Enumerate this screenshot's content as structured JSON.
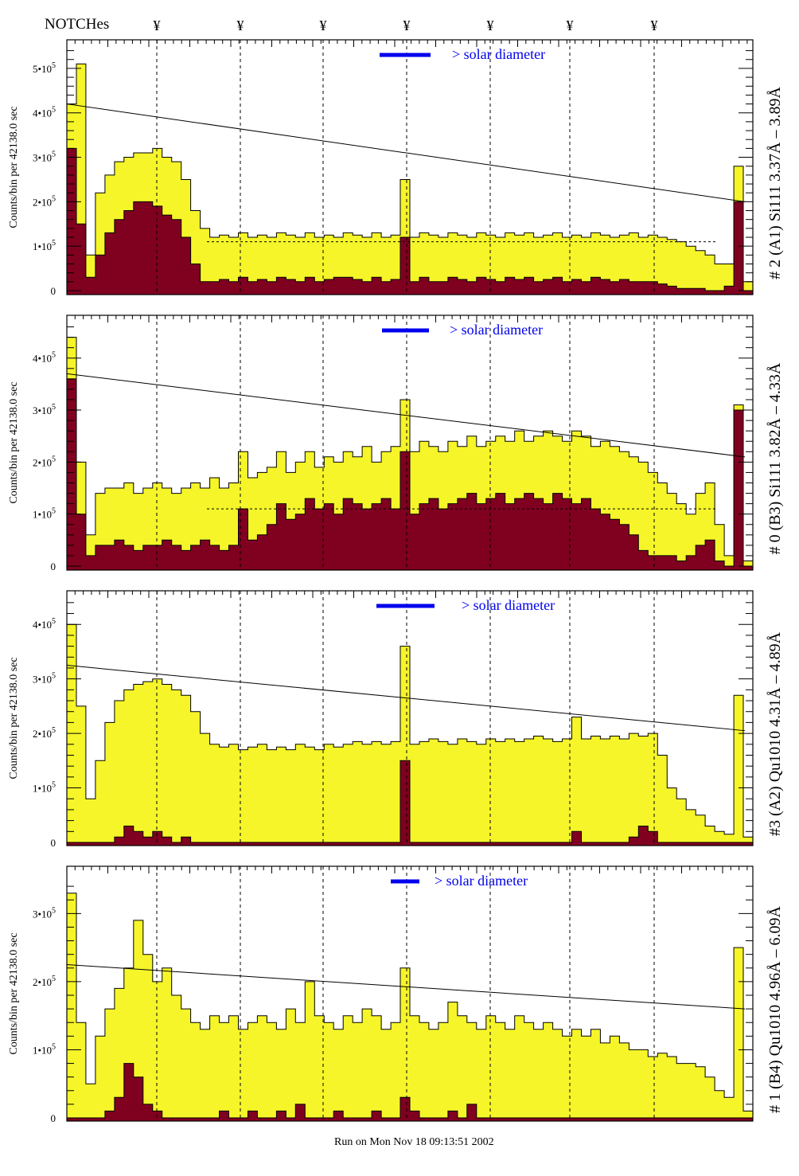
{
  "header": {
    "notches_label": "NOTCHes",
    "notch_symbol": "¥"
  },
  "footer": {
    "run_text": "Run on Mon Nov 18 09:13:51 2002"
  },
  "colors": {
    "total": "#f5f52a",
    "selected": "#800020",
    "legend": "#0000ee"
  },
  "chart_data": [
    {
      "type": "bar",
      "title": "# 2 (A1) Si111  3.37Å – 3.89Å",
      "ylabel": "Counts/bin per  42138.0 sec",
      "legend": "> solar diameter",
      "yticks": [
        "0",
        "1•10^5",
        "2•10^5",
        "3•10^5",
        "4•10^5",
        "5•10^5"
      ],
      "ylim": [
        0,
        5.5
      ],
      "yunit": 100000,
      "fit_line": [
        4.2,
        2.0
      ],
      "dashed_level": 1.1,
      "total": [
        4.2,
        5.1,
        0.8,
        2.2,
        2.6,
        2.9,
        3.0,
        3.1,
        3.1,
        3.2,
        3.0,
        2.9,
        2.5,
        1.8,
        1.4,
        1.2,
        1.25,
        1.2,
        1.3,
        1.2,
        1.25,
        1.2,
        1.3,
        1.25,
        1.2,
        1.3,
        1.2,
        1.25,
        1.2,
        1.3,
        1.25,
        1.2,
        1.3,
        1.2,
        1.25,
        2.5,
        1.2,
        1.3,
        1.25,
        1.2,
        1.3,
        1.25,
        1.2,
        1.3,
        1.25,
        1.2,
        1.3,
        1.25,
        1.3,
        1.2,
        1.25,
        1.3,
        1.2,
        1.25,
        1.2,
        1.3,
        1.25,
        1.2,
        1.25,
        1.3,
        1.2,
        1.25,
        1.2,
        1.15,
        1.1,
        1.0,
        0.9,
        0.8,
        0.6,
        0.6,
        2.8,
        0.2
      ],
      "selected": [
        3.2,
        1.5,
        0.3,
        0.8,
        1.3,
        1.6,
        1.8,
        2.0,
        2.0,
        1.9,
        1.7,
        1.6,
        1.2,
        0.6,
        0.2,
        0.2,
        0.25,
        0.2,
        0.3,
        0.2,
        0.25,
        0.2,
        0.3,
        0.25,
        0.2,
        0.3,
        0.2,
        0.25,
        0.3,
        0.3,
        0.25,
        0.2,
        0.3,
        0.2,
        0.25,
        1.2,
        0.2,
        0.3,
        0.2,
        0.2,
        0.3,
        0.25,
        0.2,
        0.3,
        0.25,
        0.2,
        0.3,
        0.25,
        0.3,
        0.2,
        0.25,
        0.3,
        0.2,
        0.25,
        0.2,
        0.3,
        0.25,
        0.2,
        0.25,
        0.2,
        0.2,
        0.2,
        0.15,
        0.1,
        0.05,
        0.05,
        0.05,
        0.0,
        0.0,
        0.1,
        2.0,
        0.0
      ]
    },
    {
      "type": "bar",
      "title": "# 0 (B3) Si111  3.82Å – 4.33Å",
      "ylabel": "Counts/bin per  42138.0 sec",
      "legend": "> solar diameter",
      "yticks": [
        "0",
        "1•10^5",
        "2•10^5",
        "3•10^5",
        "4•10^5"
      ],
      "ylim": [
        0,
        4.7
      ],
      "yunit": 100000,
      "fit_line": [
        3.7,
        2.1
      ],
      "dashed_level": 1.1,
      "total": [
        4.4,
        2.0,
        0.6,
        1.4,
        1.5,
        1.5,
        1.6,
        1.4,
        1.5,
        1.6,
        1.5,
        1.4,
        1.5,
        1.6,
        1.5,
        1.7,
        1.5,
        1.6,
        2.2,
        1.7,
        1.8,
        1.9,
        2.2,
        1.8,
        2.0,
        2.2,
        1.9,
        2.1,
        2.0,
        2.2,
        2.1,
        2.3,
        2.0,
        2.2,
        2.3,
        3.2,
        2.2,
        2.4,
        2.3,
        2.2,
        2.4,
        2.3,
        2.5,
        2.3,
        2.4,
        2.5,
        2.4,
        2.6,
        2.4,
        2.5,
        2.6,
        2.5,
        2.4,
        2.6,
        2.5,
        2.3,
        2.4,
        2.3,
        2.2,
        2.1,
        2.0,
        1.8,
        1.6,
        1.4,
        1.2,
        1.0,
        1.4,
        1.6,
        0.8,
        0.2,
        3.1,
        0.1
      ],
      "selected": [
        3.6,
        1.0,
        0.2,
        0.4,
        0.4,
        0.5,
        0.4,
        0.3,
        0.4,
        0.4,
        0.5,
        0.4,
        0.3,
        0.4,
        0.5,
        0.4,
        0.3,
        0.4,
        1.1,
        0.5,
        0.6,
        0.8,
        1.2,
        0.9,
        1.0,
        1.3,
        1.1,
        1.2,
        1.0,
        1.3,
        1.2,
        1.1,
        1.2,
        1.3,
        1.1,
        2.2,
        1.0,
        1.2,
        1.3,
        1.1,
        1.2,
        1.3,
        1.4,
        1.2,
        1.3,
        1.4,
        1.2,
        1.3,
        1.4,
        1.3,
        1.2,
        1.4,
        1.3,
        1.2,
        1.3,
        1.1,
        1.0,
        0.9,
        0.8,
        0.6,
        0.3,
        0.2,
        0.2,
        0.2,
        0.1,
        0.2,
        0.4,
        0.5,
        0.1,
        0.0,
        3.0,
        0.0
      ]
    },
    {
      "type": "bar",
      "title": "#3 (A2) Qu1010  4.31Å – 4.89Å",
      "ylabel": "Counts/bin per  42138.0 sec",
      "legend": "> solar diameter",
      "yticks": [
        "0",
        "1•10^5",
        "2•10^5",
        "3•10^5",
        "4•10^5"
      ],
      "ylim": [
        0,
        4.5
      ],
      "yunit": 100000,
      "fit_line": [
        3.25,
        2.05
      ],
      "dashed_level": null,
      "total": [
        4.0,
        2.5,
        0.8,
        1.5,
        2.2,
        2.6,
        2.8,
        2.9,
        2.95,
        3.0,
        2.9,
        2.8,
        2.7,
        2.4,
        2.0,
        1.8,
        1.75,
        1.8,
        1.7,
        1.75,
        1.8,
        1.7,
        1.75,
        1.7,
        1.8,
        1.75,
        1.7,
        1.8,
        1.75,
        1.8,
        1.85,
        1.8,
        1.85,
        1.8,
        1.85,
        3.6,
        1.8,
        1.85,
        1.9,
        1.85,
        1.8,
        1.9,
        1.85,
        1.8,
        1.9,
        1.85,
        1.9,
        1.85,
        1.9,
        1.95,
        1.9,
        1.85,
        1.9,
        2.3,
        1.9,
        1.95,
        1.9,
        1.95,
        1.9,
        2.0,
        1.95,
        2.0,
        1.6,
        1.0,
        0.8,
        0.6,
        0.5,
        0.3,
        0.2,
        0.15,
        2.7,
        0.1
      ],
      "selected": [
        0,
        0,
        0,
        0,
        0,
        0.1,
        0.3,
        0.2,
        0.1,
        0.2,
        0.1,
        0,
        0.1,
        0,
        0,
        0,
        0,
        0,
        0,
        0,
        0,
        0,
        0,
        0,
        0,
        0,
        0,
        0,
        0,
        0,
        0,
        0,
        0,
        0,
        0,
        1.5,
        0,
        0,
        0,
        0,
        0,
        0,
        0,
        0,
        0,
        0,
        0,
        0,
        0,
        0,
        0,
        0,
        0,
        0.2,
        0,
        0,
        0,
        0,
        0,
        0.1,
        0.3,
        0.2,
        0,
        0,
        0,
        0,
        0,
        0,
        0,
        0,
        0,
        0
      ]
    },
    {
      "type": "bar",
      "title": "# 1 (B4) Qu1010 4.96Å – 6.09Å",
      "ylabel": "Counts/bin per  42138.0 sec",
      "legend": "> solar diameter",
      "yticks": [
        "0",
        "1•10^5",
        "2•10^5",
        "3•10^5"
      ],
      "ylim": [
        0,
        3.6
      ],
      "yunit": 100000,
      "fit_line": [
        2.25,
        1.6
      ],
      "dashed_level": null,
      "total": [
        3.3,
        1.4,
        0.5,
        1.2,
        1.6,
        1.9,
        2.2,
        2.9,
        2.4,
        2.0,
        2.2,
        1.8,
        1.6,
        1.4,
        1.3,
        1.5,
        1.4,
        1.5,
        1.3,
        1.4,
        1.5,
        1.4,
        1.3,
        1.6,
        1.4,
        2.0,
        1.5,
        1.4,
        1.3,
        1.5,
        1.4,
        1.6,
        1.5,
        1.3,
        1.4,
        2.2,
        1.5,
        1.4,
        1.3,
        1.4,
        1.7,
        1.5,
        1.4,
        1.3,
        1.5,
        1.4,
        1.3,
        1.5,
        1.4,
        1.3,
        1.4,
        1.3,
        1.2,
        1.3,
        1.2,
        1.3,
        1.1,
        1.2,
        1.1,
        1.0,
        1.0,
        0.9,
        0.95,
        0.9,
        0.8,
        0.8,
        0.75,
        0.6,
        0.4,
        0.3,
        2.5,
        0.1
      ],
      "selected": [
        0,
        0,
        0,
        0,
        0.1,
        0.3,
        0.8,
        0.6,
        0.2,
        0.1,
        0,
        0,
        0,
        0,
        0,
        0,
        0.1,
        0,
        0,
        0.1,
        0,
        0,
        0.1,
        0,
        0.2,
        0,
        0,
        0,
        0.1,
        0,
        0,
        0,
        0.1,
        0,
        0,
        0.3,
        0.1,
        0,
        0,
        0,
        0.1,
        0,
        0.2,
        0,
        0,
        0,
        0,
        0,
        0,
        0,
        0,
        0,
        0,
        0,
        0,
        0,
        0,
        0,
        0,
        0,
        0,
        0,
        0,
        0,
        0,
        0,
        0,
        0,
        0,
        0,
        0,
        0
      ]
    }
  ]
}
